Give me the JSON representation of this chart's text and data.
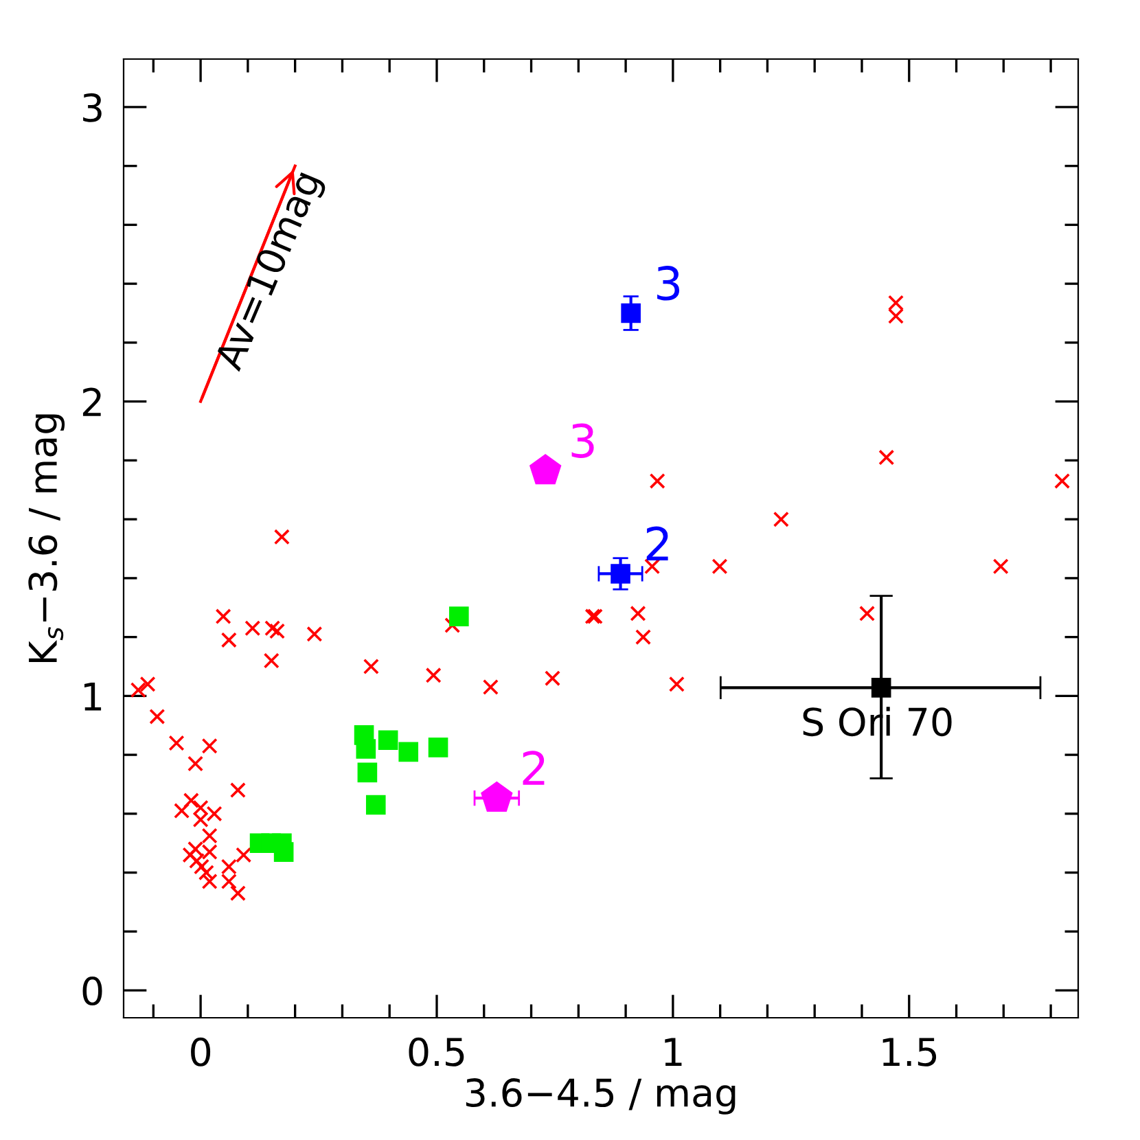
{
  "chart_data": {
    "type": "scatter",
    "xlabel": "3.6−4.5 / mag",
    "ylabel": "K$_{s}$−3.6 / mag",
    "xlim": [
      -0.163,
      1.858
    ],
    "ylim": [
      -0.093,
      3.163
    ],
    "xticks": [
      {
        "value": -0.1,
        "label": null
      },
      0,
      {
        "value": 0.1,
        "label": null
      },
      {
        "value": 0.2,
        "label": null
      },
      {
        "value": 0.3,
        "label": null
      },
      {
        "value": 0.4,
        "label": null
      },
      0.5,
      {
        "value": 0.6,
        "label": null
      },
      {
        "value": 0.7,
        "label": null
      },
      {
        "value": 0.8,
        "label": null
      },
      {
        "value": 0.9,
        "label": null
      },
      1,
      {
        "value": 1.1,
        "label": null
      },
      {
        "value": 1.2,
        "label": null
      },
      {
        "value": 1.3,
        "label": null
      },
      {
        "value": 1.4,
        "label": null
      },
      1.5,
      {
        "value": 1.6,
        "label": null
      },
      {
        "value": 1.7,
        "label": null
      },
      {
        "value": 1.8,
        "label": null
      }
    ],
    "yticks": [
      0,
      {
        "value": 0.2,
        "label": null
      },
      {
        "value": 0.4,
        "label": null
      },
      {
        "value": 0.6,
        "label": null
      },
      {
        "value": 0.8,
        "label": null
      },
      1,
      {
        "value": 1.2,
        "label": null
      },
      {
        "value": 1.4,
        "label": null
      },
      {
        "value": 1.6,
        "label": null
      },
      {
        "value": 1.8,
        "label": null
      },
      2,
      {
        "value": 2.2,
        "label": null
      },
      {
        "value": 2.4,
        "label": null
      },
      {
        "value": 2.6,
        "label": null
      },
      {
        "value": 2.8,
        "label": null
      },
      3
    ],
    "grid": false,
    "legend": false,
    "annotations": [
      {
        "text": "Av=10mag",
        "x": 0.2,
        "y": 2.8
      },
      {
        "text": "3",
        "x": 0.73,
        "y": 1.765
      },
      {
        "text": "2",
        "x": 0.627,
        "y": 0.653
      },
      {
        "text": "3",
        "x": 0.911,
        "y": 2.3
      },
      {
        "text": "2",
        "x": 0.889,
        "y": 1.415
      }
    ],
    "series": [
      {
        "type": "line",
        "color": "#ff0000",
        "marker": "none",
        "line_style": "solid",
        "x": [
          0,
          0.2
        ],
        "values": [
          2,
          2.8
        ]
      },
      {
        "color": "#ff0000",
        "marker": "cross",
        "x": [
          0.172,
          0.048,
          0.06,
          0.11,
          0.152,
          0.162,
          0.15,
          0.241,
          0.361,
          0.533,
          0.493,
          0.614,
          0.745,
          0.83,
          -0.132,
          -0.112,
          -0.092,
          -0.051,
          0.019,
          -0.011,
          0.079,
          -0.04,
          -0.02,
          0.0,
          0.0,
          0.029,
          0.019,
          -0.022,
          -0.011,
          -0.008,
          0.019,
          0.002,
          0.012,
          0.019,
          0.06,
          0.06,
          0.091,
          0.079,
          1.472,
          1.472,
          1.452,
          1.824,
          0.967,
          1.229,
          0.956,
          1.099,
          1.694,
          0.835,
          0.926,
          0.937,
          1.008,
          1.411
        ],
        "values": [
          1.54,
          1.27,
          1.19,
          1.23,
          1.23,
          1.22,
          1.12,
          1.21,
          1.1,
          1.24,
          1.07,
          1.03,
          1.06,
          1.27,
          1.02,
          1.04,
          0.93,
          0.84,
          0.83,
          0.77,
          0.68,
          0.61,
          0.645,
          0.62,
          0.58,
          0.6,
          0.525,
          0.46,
          0.48,
          0.44,
          0.47,
          0.42,
          0.4,
          0.37,
          0.42,
          0.37,
          0.46,
          0.33,
          2.335,
          2.29,
          1.81,
          1.73,
          1.73,
          1.6,
          1.44,
          1.44,
          1.44,
          1.27,
          1.28,
          1.2,
          1.04,
          1.28
        ]
      },
      {
        "color": "#00ee00",
        "marker": "square",
        "x": [
          0.547,
          0.346,
          0.35,
          0.397,
          0.44,
          0.503,
          0.353,
          0.371
        ],
        "values": [
          1.27,
          0.867,
          0.82,
          0.85,
          0.81,
          0.825,
          0.74,
          0.63
        ]
      },
      {
        "color": "#00ee00",
        "marker": "square",
        "x": [
          0.125,
          0.149,
          0.172,
          0.176
        ],
        "values": [
          0.5,
          0.5,
          0.5,
          0.47
        ]
      },
      {
        "color": "#ff00ff",
        "x": [
          0.73,
          0.627
        ],
        "values": [
          1.765,
          0.653
        ],
        "errors": [
          0.03,
          0.02
        ],
        "xerrors": [
          null,
          0.047
        ]
      },
      {
        "color": "#0000ff",
        "marker": "square",
        "x": [
          0.911,
          0.889
        ],
        "values": [
          2.3,
          1.415
        ],
        "errors": [
          0.057,
          0.053
        ],
        "xerrors": [
          null,
          0.046
        ]
      },
      {
        "name": "S Ori 70",
        "color": "#000000",
        "marker": "square",
        "x": [
          1.441
        ],
        "values": [
          1.028
        ],
        "errors": [
          [
            0.72,
            1.34
          ]
        ],
        "xerrors": [
          [
            1.101,
            1.778
          ]
        ]
      }
    ]
  }
}
